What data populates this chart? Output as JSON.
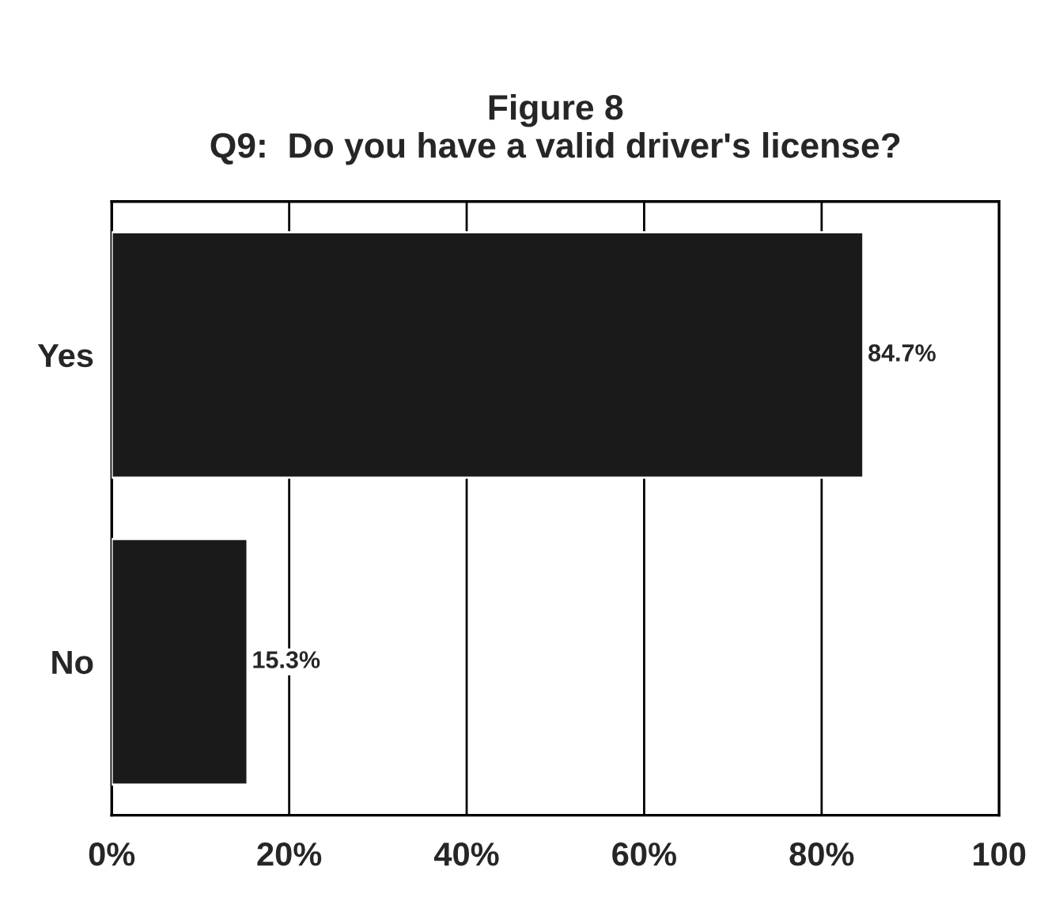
{
  "chart_data": {
    "type": "bar",
    "orientation": "horizontal",
    "title": "Figure 8\nQ9:  Do you have a valid driver's license?",
    "categories": [
      "Yes",
      "No"
    ],
    "values": [
      84.7,
      15.3
    ],
    "value_labels": [
      "84.7%",
      "15.3%"
    ],
    "color": "#1a1a1a",
    "xlim": [
      0,
      100
    ],
    "xticks": [
      {
        "value": 0,
        "label": "0%"
      },
      {
        "value": 20,
        "label": "20%"
      },
      {
        "value": 40,
        "label": "40%"
      },
      {
        "value": 60,
        "label": "60%"
      },
      {
        "value": 80,
        "label": "80%"
      },
      {
        "value": 100,
        "label": "100"
      }
    ],
    "grid": "x",
    "legend": false
  }
}
